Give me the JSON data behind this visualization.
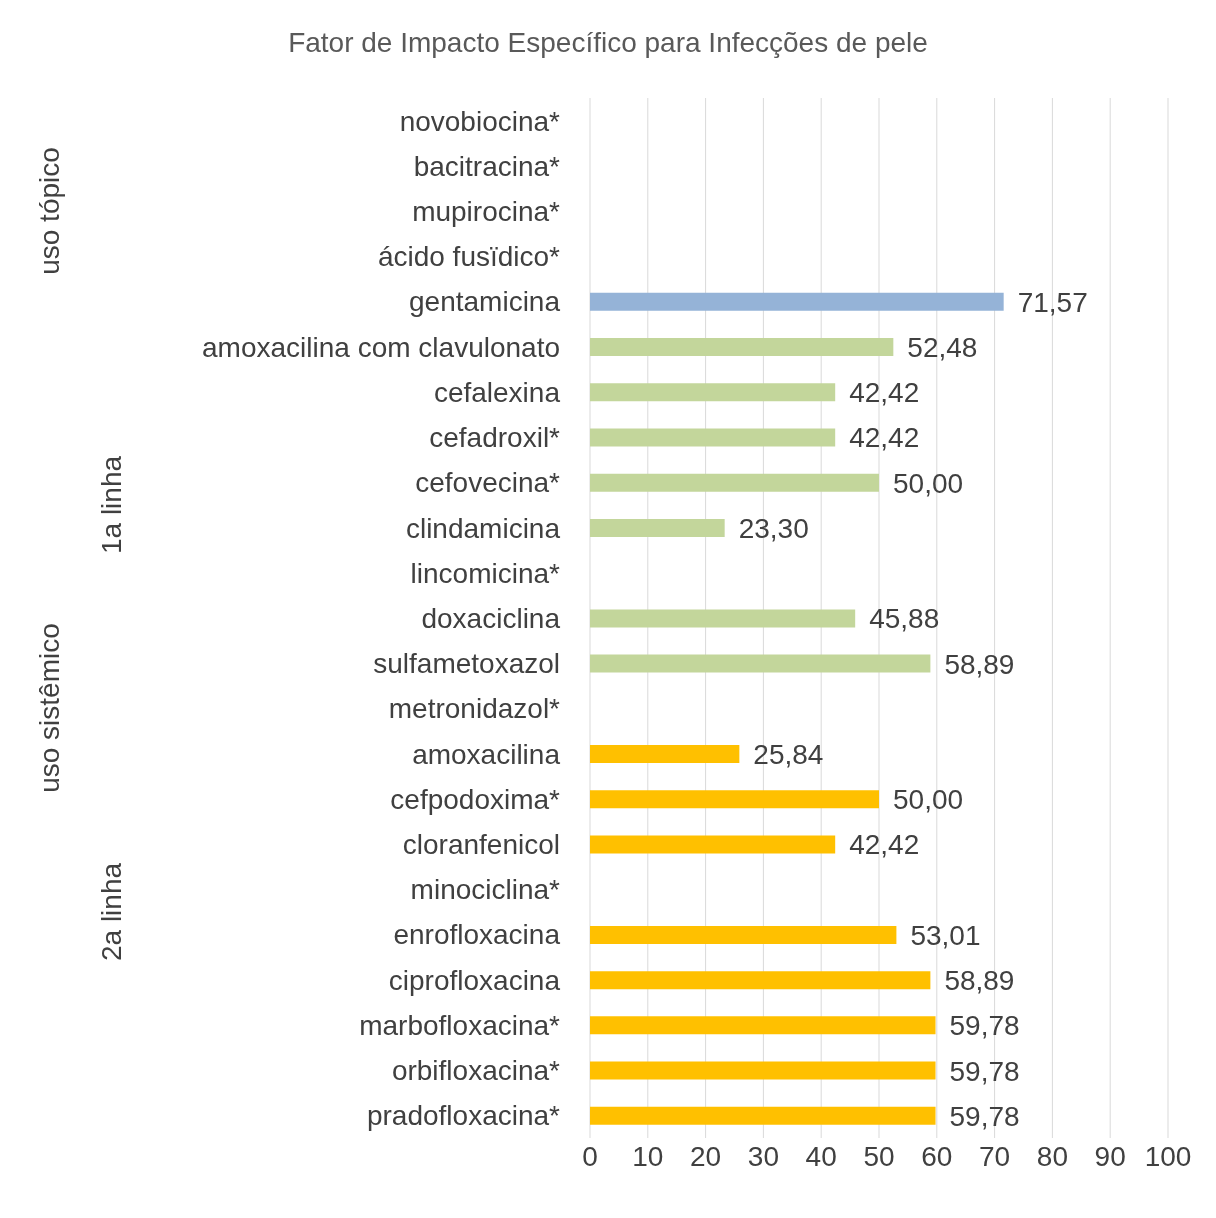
{
  "chart_data": {
    "type": "bar",
    "orientation": "horizontal",
    "title": "Fator de Impacto Específico para Infecções de pele",
    "categories": [
      "novobiocina*",
      "bacitracina*",
      "mupirocina*",
      "ácido fusïdico*",
      "gentamicina",
      "amoxacilina com clavulonato",
      "cefalexina",
      "cefadroxil*",
      "cefovecina*",
      "clindamicina",
      "lincomicina*",
      "doxaciclina",
      "sulfametoxazol",
      "metronidazol*",
      "amoxacilina",
      "cefpodoxima*",
      "cloranfenicol",
      "minociclina*",
      "enrofloxacina",
      "ciprofloxacina",
      "marbofloxacina*",
      "orbifloxacina*",
      "pradofloxacina*"
    ],
    "values": [
      null,
      null,
      null,
      null,
      71.57,
      52.48,
      42.42,
      42.42,
      50.0,
      23.3,
      null,
      45.88,
      58.89,
      null,
      25.84,
      50.0,
      42.42,
      null,
      53.01,
      58.89,
      59.78,
      59.78,
      59.78
    ],
    "value_labels": [
      null,
      null,
      null,
      null,
      "71,57",
      "52,48",
      "42,42",
      "42,42",
      "50,00",
      "23,30",
      null,
      "45,88",
      "58,89",
      null,
      "25,84",
      "50,00",
      "42,42",
      null,
      "53,01",
      "58,89",
      "59,78",
      "59,78",
      "59,78"
    ],
    "colors": [
      "#95b3d7",
      "#95b3d7",
      "#95b3d7",
      "#95b3d7",
      "#95b3d7",
      "#c3d69b",
      "#c3d69b",
      "#c3d69b",
      "#c3d69b",
      "#c3d69b",
      "#c3d69b",
      "#c3d69b",
      "#c3d69b",
      "#c3d69b",
      "#ffc000",
      "#ffc000",
      "#ffc000",
      "#ffc000",
      "#ffc000",
      "#ffc000",
      "#ffc000",
      "#ffc000",
      "#ffc000"
    ],
    "xlim": [
      0,
      100
    ],
    "xticks": [
      0,
      10,
      20,
      30,
      40,
      50,
      60,
      70,
      80,
      90,
      100
    ],
    "grid": "x",
    "annotations": [
      "uso tópico",
      "uso sistêmico",
      "1a linha",
      "2a linha"
    ]
  }
}
